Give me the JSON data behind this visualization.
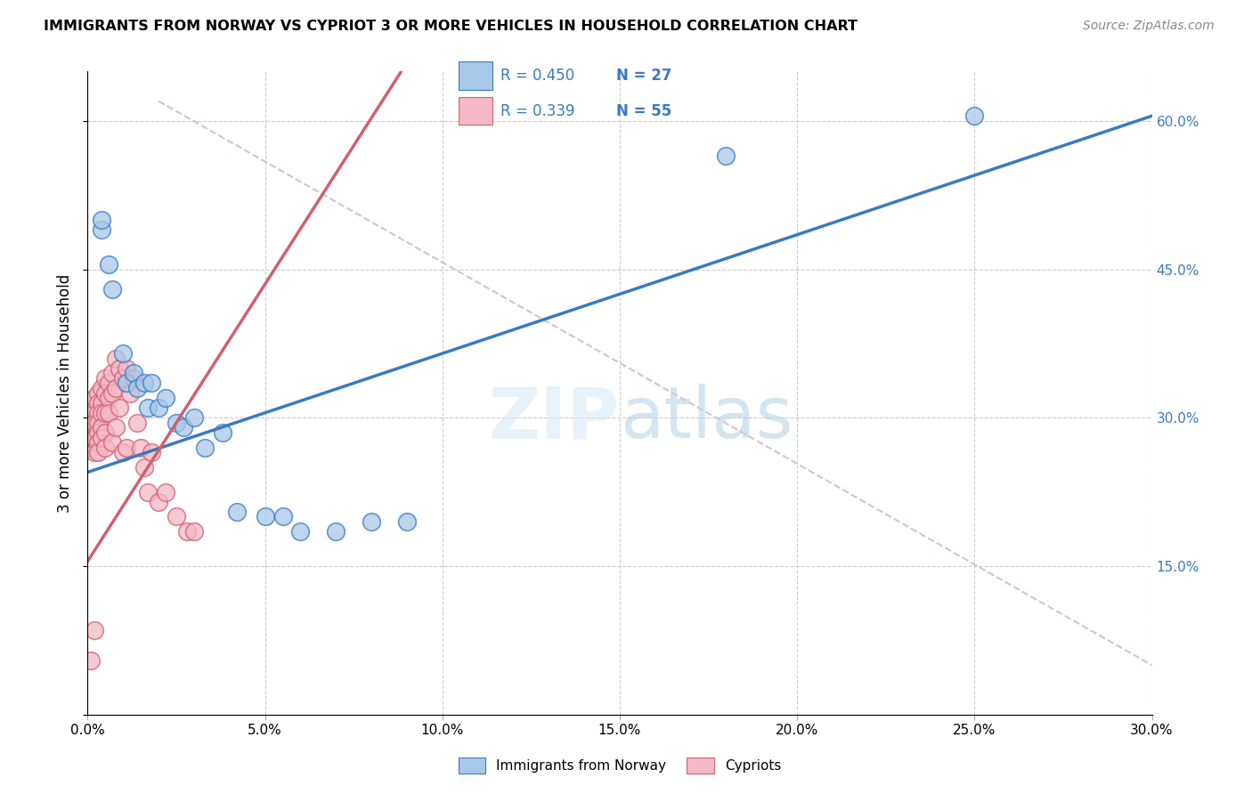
{
  "title": "IMMIGRANTS FROM NORWAY VS CYPRIOT 3 OR MORE VEHICLES IN HOUSEHOLD CORRELATION CHART",
  "source": "Source: ZipAtlas.com",
  "ylabel_label": "3 or more Vehicles in Household",
  "legend_label1": "Immigrants from Norway",
  "legend_label2": "Cypriots",
  "r1": "0.450",
  "n1": "27",
  "r2": "0.339",
  "n2": "55",
  "color_blue": "#a8c8e8",
  "color_pink": "#f4b8c8",
  "color_blue_line": "#3a7abf",
  "color_pink_line": "#d06070",
  "color_diagonal": "#d0b8c8",
  "xmin": 0.0,
  "xmax": 0.3,
  "ymin": 0.0,
  "ymax": 0.65,
  "norway_x": [
    0.004,
    0.004,
    0.006,
    0.007,
    0.01,
    0.011,
    0.013,
    0.014,
    0.016,
    0.017,
    0.018,
    0.02,
    0.022,
    0.025,
    0.027,
    0.03,
    0.033,
    0.038,
    0.042,
    0.05,
    0.055,
    0.06,
    0.07,
    0.08,
    0.09,
    0.18,
    0.25
  ],
  "norway_y": [
    0.49,
    0.5,
    0.455,
    0.43,
    0.365,
    0.335,
    0.345,
    0.33,
    0.335,
    0.31,
    0.335,
    0.31,
    0.32,
    0.295,
    0.29,
    0.3,
    0.27,
    0.285,
    0.205,
    0.2,
    0.2,
    0.185,
    0.185,
    0.195,
    0.195,
    0.565,
    0.605
  ],
  "cypriot_x": [
    0.001,
    0.001,
    0.001,
    0.001,
    0.001,
    0.002,
    0.002,
    0.002,
    0.002,
    0.002,
    0.002,
    0.003,
    0.003,
    0.003,
    0.003,
    0.003,
    0.003,
    0.003,
    0.004,
    0.004,
    0.004,
    0.004,
    0.004,
    0.005,
    0.005,
    0.005,
    0.005,
    0.005,
    0.006,
    0.006,
    0.006,
    0.007,
    0.007,
    0.007,
    0.008,
    0.008,
    0.008,
    0.009,
    0.009,
    0.01,
    0.01,
    0.011,
    0.011,
    0.012,
    0.013,
    0.014,
    0.015,
    0.016,
    0.017,
    0.018,
    0.02,
    0.022,
    0.025,
    0.028,
    0.03
  ],
  "cypriot_y": [
    0.295,
    0.285,
    0.275,
    0.27,
    0.055,
    0.32,
    0.305,
    0.295,
    0.28,
    0.265,
    0.085,
    0.325,
    0.315,
    0.305,
    0.295,
    0.285,
    0.275,
    0.265,
    0.33,
    0.315,
    0.305,
    0.29,
    0.28,
    0.34,
    0.325,
    0.305,
    0.285,
    0.27,
    0.335,
    0.32,
    0.305,
    0.345,
    0.325,
    0.275,
    0.36,
    0.33,
    0.29,
    0.35,
    0.31,
    0.34,
    0.265,
    0.35,
    0.27,
    0.325,
    0.34,
    0.295,
    0.27,
    0.25,
    0.225,
    0.265,
    0.215,
    0.225,
    0.2,
    0.185,
    0.185
  ]
}
